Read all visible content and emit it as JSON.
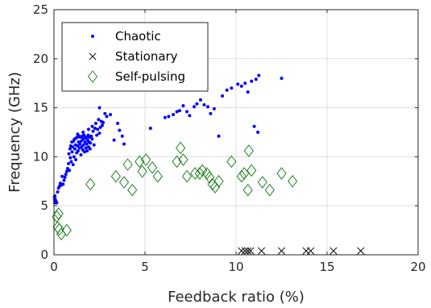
{
  "chart_data": {
    "type": "scatter",
    "title": "",
    "xlabel": "Feedback ratio (%)",
    "ylabel": "Frequency (GHz)",
    "xlim": [
      0,
      20
    ],
    "ylim": [
      0,
      25
    ],
    "xticks": [
      0,
      5,
      10,
      15,
      20
    ],
    "yticks": [
      0,
      5,
      10,
      15,
      20,
      25
    ],
    "grid": true,
    "legend_position": "top-left",
    "series": [
      {
        "name": "Chaotic",
        "marker": "dot",
        "color": "#0000ff",
        "points": [
          [
            0.02,
            5.9
          ],
          [
            0.03,
            5.6
          ],
          [
            0.04,
            5.3
          ],
          [
            0.05,
            6.0
          ],
          [
            0.06,
            5.7
          ],
          [
            0.1,
            5.5
          ],
          [
            0.15,
            5.3
          ],
          [
            0.2,
            6.4
          ],
          [
            0.25,
            6.8
          ],
          [
            0.3,
            7.0
          ],
          [
            0.35,
            7.3
          ],
          [
            0.4,
            7.1
          ],
          [
            0.45,
            8.0
          ],
          [
            0.5,
            7.2
          ],
          [
            0.55,
            7.6
          ],
          [
            0.6,
            7.9
          ],
          [
            0.65,
            8.2
          ],
          [
            0.7,
            8.5
          ],
          [
            0.75,
            8.8
          ],
          [
            0.8,
            9.3
          ],
          [
            0.82,
            10.3
          ],
          [
            0.85,
            8.6
          ],
          [
            0.88,
            10.8
          ],
          [
            0.9,
            9.9
          ],
          [
            0.92,
            11.1
          ],
          [
            0.95,
            9.5
          ],
          [
            0.98,
            11.5
          ],
          [
            1.0,
            10.5
          ],
          [
            1.02,
            11.0
          ],
          [
            1.05,
            9.2
          ],
          [
            1.08,
            11.6
          ],
          [
            1.1,
            10.0
          ],
          [
            1.12,
            11.8
          ],
          [
            1.15,
            10.8
          ],
          [
            1.18,
            11.2
          ],
          [
            1.2,
            9.7
          ],
          [
            1.22,
            11.9
          ],
          [
            1.25,
            10.4
          ],
          [
            1.28,
            12.0
          ],
          [
            1.3,
            11.1
          ],
          [
            1.32,
            10.6
          ],
          [
            1.35,
            11.5
          ],
          [
            1.38,
            12.1
          ],
          [
            1.4,
            10.9
          ],
          [
            1.42,
            11.3
          ],
          [
            1.45,
            12.0
          ],
          [
            1.48,
            10.2
          ],
          [
            1.5,
            11.6
          ],
          [
            1.52,
            11.0
          ],
          [
            1.55,
            12.1
          ],
          [
            1.58,
            10.7
          ],
          [
            1.6,
            11.8
          ],
          [
            1.62,
            11.2
          ],
          [
            1.65,
            12.2
          ],
          [
            1.68,
            10.5
          ],
          [
            1.7,
            11.5
          ],
          [
            1.72,
            11.9
          ],
          [
            1.75,
            10.9
          ],
          [
            1.78,
            12.0
          ],
          [
            1.8,
            11.3
          ],
          [
            1.82,
            10.6
          ],
          [
            1.85,
            11.7
          ],
          [
            1.88,
            12.2
          ],
          [
            1.9,
            11.0
          ],
          [
            1.92,
            11.5
          ],
          [
            1.95,
            12.0
          ],
          [
            1.98,
            10.8
          ],
          [
            2.0,
            11.4
          ],
          [
            2.05,
            12.1
          ],
          [
            2.1,
            11.8
          ],
          [
            2.15,
            12.6
          ],
          [
            2.2,
            11.2
          ],
          [
            2.25,
            12.9
          ],
          [
            2.3,
            13.4
          ],
          [
            2.35,
            12.2
          ],
          [
            2.4,
            12.8
          ],
          [
            2.45,
            13.8
          ],
          [
            2.5,
            12.4
          ],
          [
            2.55,
            13.0
          ],
          [
            2.6,
            13.6
          ],
          [
            2.65,
            13.2
          ],
          [
            2.7,
            13.5
          ],
          [
            2.8,
            14.4
          ],
          [
            2.9,
            14.1
          ],
          [
            2.5,
            15.0
          ],
          [
            2.1,
            13.1
          ],
          [
            1.9,
            12.8
          ],
          [
            1.6,
            12.5
          ],
          [
            1.3,
            12.3
          ],
          [
            3.1,
            14.3
          ],
          [
            3.3,
            11.7
          ],
          [
            3.5,
            13.4
          ],
          [
            3.6,
            12.7
          ],
          [
            3.75,
            12.1
          ],
          [
            3.85,
            11.3
          ],
          [
            5.3,
            12.9
          ],
          [
            6.1,
            14.0
          ],
          [
            6.3,
            14.1
          ],
          [
            6.55,
            14.3
          ],
          [
            6.75,
            14.6
          ],
          [
            6.9,
            14.7
          ],
          [
            7.1,
            15.2
          ],
          [
            7.3,
            14.6
          ],
          [
            7.45,
            14.2
          ],
          [
            7.7,
            15.1
          ],
          [
            7.85,
            15.4
          ],
          [
            8.05,
            15.8
          ],
          [
            8.25,
            15.3
          ],
          [
            8.45,
            15.1
          ],
          [
            8.6,
            14.4
          ],
          [
            8.8,
            14.9
          ],
          [
            9.05,
            12.1
          ],
          [
            9.25,
            16.2
          ],
          [
            9.5,
            16.8
          ],
          [
            9.75,
            17.0
          ],
          [
            10.1,
            17.4
          ],
          [
            10.3,
            17.2
          ],
          [
            10.5,
            17.5
          ],
          [
            10.65,
            16.6
          ],
          [
            10.85,
            17.7
          ],
          [
            11.0,
            13.1
          ],
          [
            11.1,
            17.9
          ],
          [
            11.2,
            12.5
          ],
          [
            11.25,
            18.3
          ],
          [
            12.5,
            18.0
          ]
        ]
      },
      {
        "name": "Stationary",
        "marker": "x",
        "color": "#000000",
        "points": [
          [
            10.3,
            0.4
          ],
          [
            10.5,
            0.4
          ],
          [
            10.65,
            0.4
          ],
          [
            10.8,
            0.4
          ],
          [
            11.4,
            0.4
          ],
          [
            12.5,
            0.4
          ],
          [
            13.85,
            0.4
          ],
          [
            14.1,
            0.4
          ],
          [
            15.35,
            0.4
          ],
          [
            16.85,
            0.4
          ]
        ]
      },
      {
        "name": "Self-pulsing",
        "marker": "diamond",
        "color": "#208020",
        "points": [
          [
            0.15,
            3.9
          ],
          [
            0.25,
            4.2
          ],
          [
            0.2,
            2.8
          ],
          [
            0.3,
            2.6
          ],
          [
            0.4,
            2.1
          ],
          [
            0.7,
            2.5
          ],
          [
            2.0,
            7.2
          ],
          [
            3.4,
            8.0
          ],
          [
            3.85,
            7.4
          ],
          [
            4.05,
            9.2
          ],
          [
            4.3,
            6.6
          ],
          [
            4.7,
            9.5
          ],
          [
            4.85,
            8.5
          ],
          [
            5.05,
            9.7
          ],
          [
            5.4,
            8.9
          ],
          [
            5.7,
            8.0
          ],
          [
            6.75,
            9.5
          ],
          [
            6.95,
            10.9
          ],
          [
            7.1,
            9.7
          ],
          [
            7.3,
            8.0
          ],
          [
            7.75,
            8.3
          ],
          [
            8.0,
            8.3
          ],
          [
            8.15,
            8.6
          ],
          [
            8.4,
            8.3
          ],
          [
            8.55,
            7.9
          ],
          [
            8.7,
            7.2
          ],
          [
            8.85,
            6.9
          ],
          [
            9.05,
            7.5
          ],
          [
            9.75,
            9.5
          ],
          [
            10.3,
            8.0
          ],
          [
            10.45,
            8.3
          ],
          [
            10.7,
            10.6
          ],
          [
            10.65,
            6.6
          ],
          [
            10.85,
            8.6
          ],
          [
            11.45,
            7.4
          ],
          [
            11.85,
            6.6
          ],
          [
            12.5,
            8.3
          ],
          [
            13.1,
            7.5
          ]
        ]
      }
    ]
  }
}
